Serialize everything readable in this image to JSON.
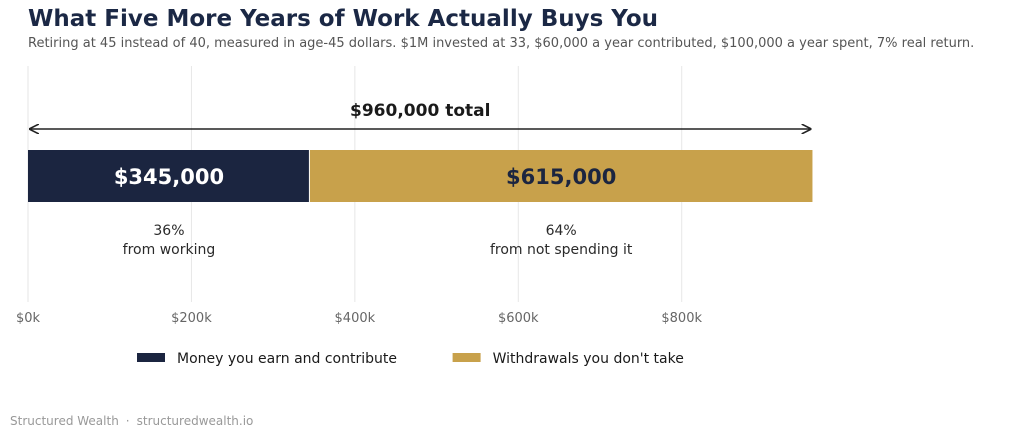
{
  "header": {
    "title": "What Five More Years of Work Actually Buys You",
    "subtitle": "Retiring at 45 instead of 40, measured in age-45 dollars. $1M invested at 33, $60,000 a year contributed, $100,000 a year spent, 7% real return."
  },
  "chart_data": {
    "type": "bar",
    "orientation": "horizontal-stacked",
    "total_label": "$960,000 total",
    "total": 960000,
    "series": [
      {
        "name": "Money you earn and contribute",
        "value": 345000,
        "value_label": "$345,000",
        "pct_label": "36%",
        "desc_label": "from working",
        "color": "#1b2540",
        "text_color": "#ffffff"
      },
      {
        "name": "Withdrawals you don't take",
        "value": 615000,
        "value_label": "$615,000",
        "pct_label": "64%",
        "desc_label": "from not spending it",
        "color": "#c8a14b",
        "text_color": "#1b2540"
      }
    ],
    "x_ticks": [
      {
        "value": 0,
        "label": "$0k"
      },
      {
        "value": 200000,
        "label": "$200k"
      },
      {
        "value": 400000,
        "label": "$400k"
      },
      {
        "value": 600000,
        "label": "$600k"
      },
      {
        "value": 800000,
        "label": "$800k"
      }
    ],
    "xlim": [
      0,
      1225000
    ],
    "grid": true,
    "legend_position": "bottom"
  },
  "footer": {
    "brand": "Structured Wealth",
    "separator": "·",
    "site": "structuredwealth.io"
  }
}
